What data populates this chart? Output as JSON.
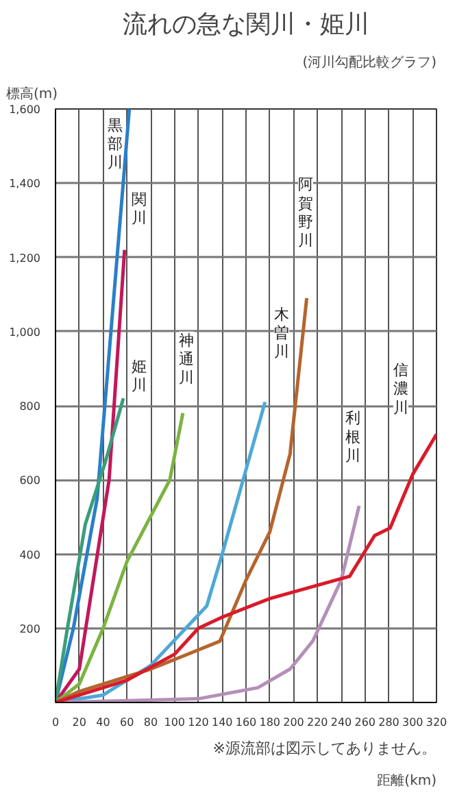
{
  "chart_data": {
    "type": "line",
    "title": "流れの急な関川・姫川",
    "subtitle": "(河川勾配比較グラフ)",
    "ylabel": "標高(m)",
    "xlabel": "距離(km)",
    "xlim": [
      0,
      320
    ],
    "ylim": [
      0,
      1600
    ],
    "xticks": [
      0,
      20,
      40,
      60,
      80,
      100,
      120,
      140,
      160,
      180,
      200,
      220,
      240,
      260,
      280,
      300,
      320
    ],
    "yticks": [
      200,
      400,
      600,
      800,
      {
        "value": 1000,
        "label": "1,000"
      },
      {
        "value": 1200,
        "label": "1,200"
      },
      {
        "value": 1400,
        "label": "1,400"
      },
      {
        "value": 1600,
        "label": "1,600"
      }
    ],
    "grid": true,
    "marker": "none",
    "line_style": "solid",
    "series": [
      {
        "color": "#2a7fc9",
        "x": [
          0,
          15,
          35,
          62
        ],
        "values": [
          0,
          200,
          550,
          1600
        ]
      },
      {
        "color": "#c2185b",
        "x": [
          0,
          20,
          45,
          58
        ],
        "values": [
          0,
          90,
          600,
          1220
        ]
      },
      {
        "color": "#3a9e7a",
        "x": [
          0,
          10,
          25,
          42,
          57
        ],
        "values": [
          0,
          200,
          480,
          650,
          820
        ]
      },
      {
        "color": "#7cb342",
        "x": [
          0,
          20,
          40,
          60,
          96,
          107
        ],
        "values": [
          0,
          50,
          200,
          380,
          600,
          780
        ]
      },
      {
        "color": "#4ea8d8",
        "x": [
          0,
          40,
          80,
          127,
          140,
          176
        ],
        "values": [
          0,
          20,
          100,
          260,
          400,
          810
        ]
      },
      {
        "color": "#b5652e",
        "x": [
          0,
          20,
          80,
          138,
          160,
          180,
          197,
          211
        ],
        "values": [
          0,
          30,
          90,
          165,
          330,
          460,
          670,
          1090
        ]
      },
      {
        "color": "#b58fb8",
        "x": [
          0,
          120,
          170,
          197,
          216,
          240,
          255
        ],
        "values": [
          0,
          10,
          40,
          90,
          165,
          330,
          530
        ]
      },
      {
        "color": "#d81b2a",
        "x": [
          0,
          20,
          60,
          100,
          120,
          140,
          180,
          247,
          268,
          281,
          300,
          320
        ],
        "values": [
          0,
          20,
          60,
          130,
          200,
          230,
          280,
          340,
          450,
          470,
          615,
          723
        ]
      }
    ],
    "annotations": [
      "黒部川",
      "関川",
      "姫川",
      "神通川",
      "木曽川",
      "阿賀野川",
      "利根川",
      "信濃川",
      "※源流部は図示してありません。"
    ]
  }
}
